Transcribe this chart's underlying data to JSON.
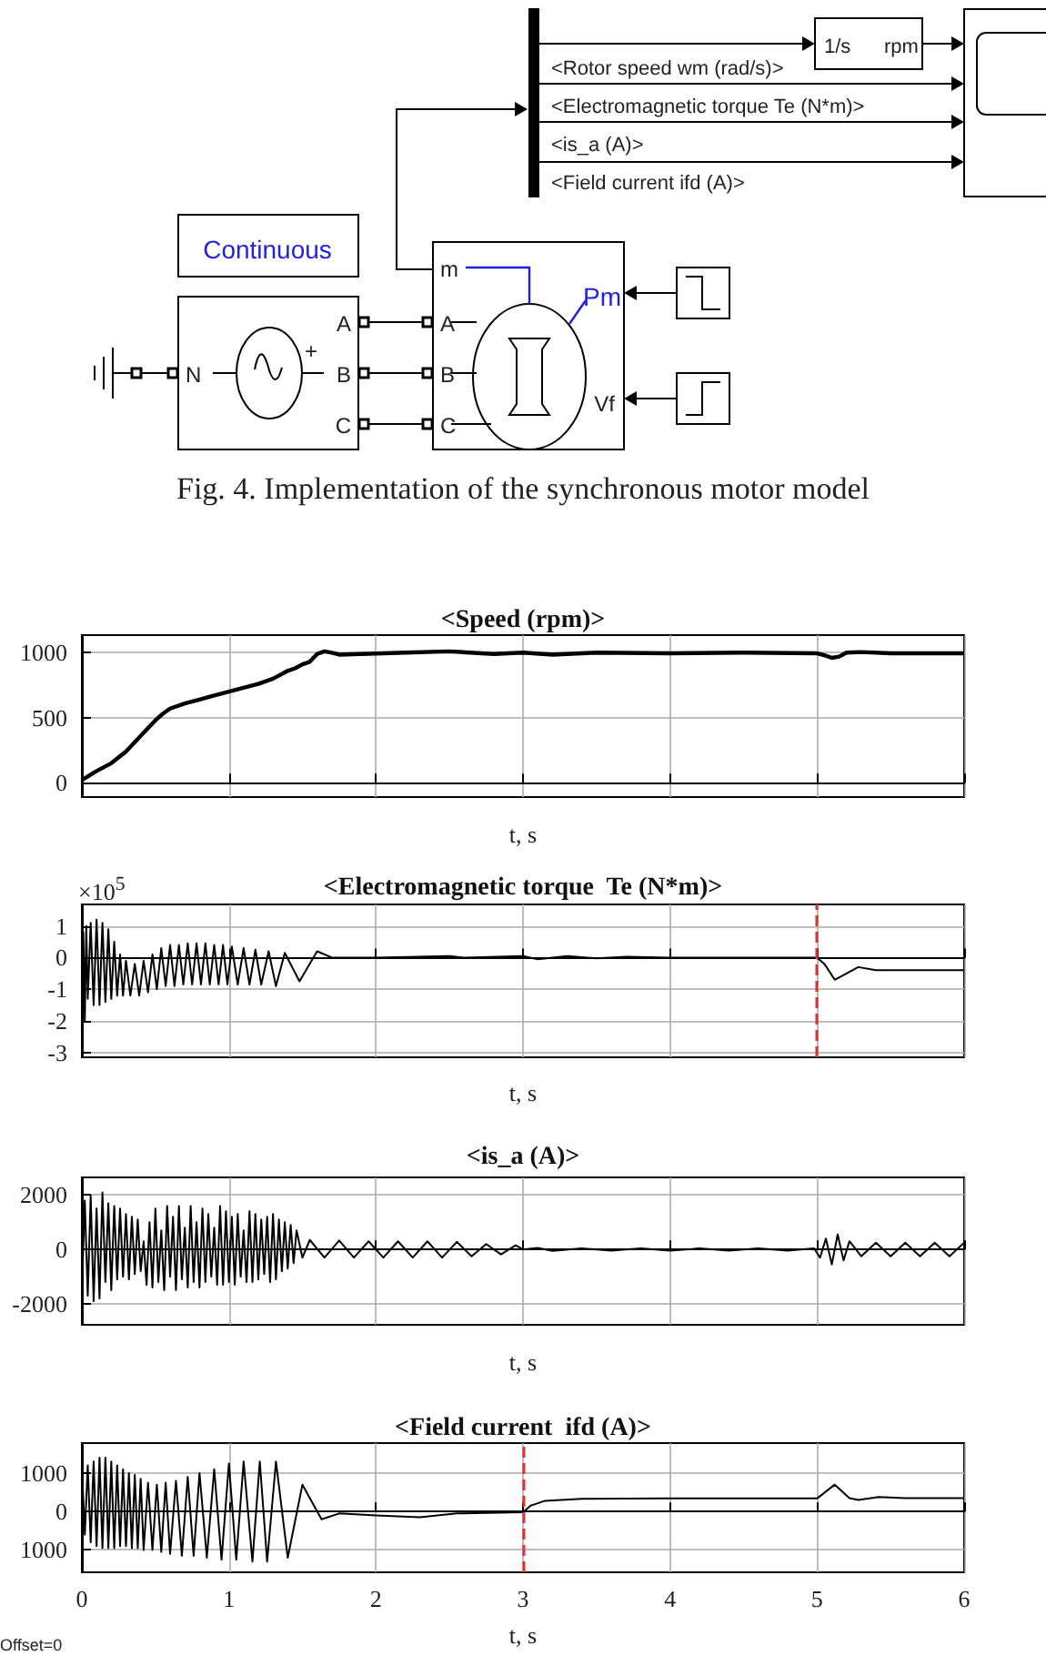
{
  "chart_data": [
    {
      "type": "other",
      "title": "Fig. 4. Implementation of the synchronous motor model",
      "annotations": [
        "1/s",
        "rpm",
        "<Rotor speed  wm (rad/s)>",
        "<Electromagnetic torque  Te (N*m)>",
        "<is_a (A)>",
        "<Field current  ifd (A)>",
        "Continuous",
        "N",
        "+",
        "A",
        "B",
        "C",
        "m",
        "A",
        "B",
        "C",
        "Pm",
        "Vf"
      ]
    },
    {
      "type": "line",
      "title": "<Speed (rpm)>",
      "xlabel": "t, s",
      "xlim": [
        0,
        6
      ],
      "xticks": [
        0,
        1,
        2,
        3,
        4,
        5,
        6
      ],
      "ylim": [
        -110,
        1135
      ],
      "yticks": [
        0,
        500,
        1000
      ],
      "grid": true,
      "tick_labels": "y",
      "series": [
        {
          "color": "#000000",
          "x": [
            0,
            0.1,
            0.2,
            0.3,
            0.4,
            0.5,
            0.55,
            0.6,
            0.7,
            0.8,
            0.9,
            1.0,
            1.1,
            1.2,
            1.3,
            1.35,
            1.4,
            1.45,
            1.5,
            1.55,
            1.6,
            1.65,
            1.7,
            1.75,
            1.9,
            2.2,
            2.5,
            2.8,
            3.0,
            3.2,
            3.5,
            4.0,
            4.5,
            5.0,
            5.05,
            5.1,
            5.15,
            5.2,
            5.3,
            5.5,
            6.0
          ],
          "values": [
            20,
            90,
            150,
            240,
            360,
            480,
            530,
            570,
            610,
            640,
            670,
            700,
            730,
            760,
            800,
            830,
            860,
            880,
            910,
            930,
            990,
            1010,
            1000,
            985,
            990,
            1000,
            1010,
            990,
            1000,
            985,
            1000,
            995,
            1000,
            995,
            980,
            960,
            970,
            1000,
            1005,
            995,
            995
          ]
        }
      ]
    },
    {
      "type": "line",
      "title": "<Electromagnetic torque  Te (N*m)>",
      "xlabel": "t, s",
      "annotations": [
        "×10$^{5}$"
      ],
      "xlim": [
        0,
        6
      ],
      "xticks": [
        0,
        1,
        2,
        3,
        4,
        5,
        6
      ],
      "ylim": [
        -3.15,
        1.68
      ],
      "yticks": [
        -3,
        -2,
        -1,
        0,
        1
      ],
      "grid": true,
      "tick_labels": "y",
      "ref_lines": [
        {
          "axis": "x",
          "value": 5,
          "color": "#e03030",
          "line_style": "dashed"
        }
      ],
      "series": [
        {
          "color": "#000000",
          "x": [
            0,
            0.01,
            0.02,
            0.03,
            0.04,
            0.06,
            0.08,
            0.1,
            0.12,
            0.14,
            0.16,
            0.18,
            0.2,
            0.22,
            0.24,
            0.26,
            0.28,
            0.3,
            0.33,
            0.36,
            0.39,
            0.42,
            0.45,
            0.48,
            0.51,
            0.54,
            0.57,
            0.6,
            0.63,
            0.66,
            0.69,
            0.72,
            0.75,
            0.78,
            0.81,
            0.84,
            0.87,
            0.9,
            0.93,
            0.96,
            0.99,
            1.02,
            1.06,
            1.1,
            1.14,
            1.18,
            1.22,
            1.27,
            1.32,
            1.38,
            1.48,
            1.6,
            1.7,
            2.0,
            2.5,
            2.6,
            3.0,
            3.1,
            3.3,
            3.5,
            3.7,
            4.0,
            5.0,
            5.05,
            5.12,
            5.2,
            5.28,
            5.4,
            6.0
          ],
          "values": [
            -2.8,
            0.8,
            -2.0,
            1.0,
            -1.3,
            1.1,
            -1.5,
            1.2,
            -1.5,
            1.1,
            -1.4,
            0.9,
            -1.3,
            0.5,
            -1.2,
            0.1,
            -1.2,
            -0.1,
            -1.2,
            -0.2,
            -1.2,
            -0.1,
            -1.1,
            0.1,
            -1.0,
            0.3,
            -0.9,
            0.4,
            -0.9,
            0.4,
            -0.85,
            0.45,
            -0.85,
            0.45,
            -0.85,
            0.45,
            -0.85,
            0.4,
            -0.85,
            0.4,
            -0.85,
            0.35,
            -0.85,
            0.3,
            -0.85,
            0.25,
            -0.85,
            0.2,
            -0.9,
            0.15,
            -0.75,
            0.2,
            0,
            0,
            0.05,
            0,
            0.05,
            -0.05,
            0.05,
            -0.02,
            0.03,
            0,
            0,
            -0.2,
            -0.7,
            -0.5,
            -0.3,
            -0.4,
            -0.4
          ]
        }
      ]
    },
    {
      "type": "line",
      "title": "<is_a (A)>",
      "xlabel": "t, s",
      "xlim": [
        0,
        6
      ],
      "xticks": [
        0,
        1,
        2,
        3,
        4,
        5,
        6
      ],
      "ylim": [
        -2770,
        2650
      ],
      "yticks": [
        -2000,
        0,
        2000
      ],
      "grid": true,
      "tick_labels": "y",
      "series": [
        {
          "color": "#000000",
          "x": [
            0,
            0.02,
            0.04,
            0.06,
            0.08,
            0.1,
            0.12,
            0.14,
            0.16,
            0.18,
            0.2,
            0.22,
            0.24,
            0.26,
            0.28,
            0.3,
            0.32,
            0.34,
            0.36,
            0.38,
            0.4,
            0.42,
            0.44,
            0.46,
            0.48,
            0.5,
            0.52,
            0.54,
            0.56,
            0.58,
            0.6,
            0.62,
            0.64,
            0.66,
            0.68,
            0.7,
            0.72,
            0.74,
            0.76,
            0.78,
            0.8,
            0.82,
            0.84,
            0.86,
            0.88,
            0.9,
            0.92,
            0.94,
            0.96,
            0.98,
            1.0,
            1.02,
            1.04,
            1.06,
            1.08,
            1.1,
            1.12,
            1.14,
            1.16,
            1.18,
            1.2,
            1.22,
            1.24,
            1.26,
            1.28,
            1.3,
            1.32,
            1.34,
            1.36,
            1.38,
            1.4,
            1.42,
            1.44,
            1.46,
            1.5,
            1.55,
            1.65,
            1.75,
            1.85,
            1.95,
            2.05,
            2.15,
            2.25,
            2.35,
            2.45,
            2.55,
            2.65,
            2.75,
            2.85,
            2.95,
            3.0,
            3.1,
            3.2,
            3.4,
            3.6,
            3.8,
            4.0,
            4.2,
            4.4,
            4.6,
            4.8,
            4.98,
            5.02,
            5.06,
            5.1,
            5.14,
            5.18,
            5.22,
            5.3,
            5.4,
            5.5,
            5.6,
            5.7,
            5.8,
            5.9,
            6.0
          ],
          "values": [
            -1500,
            1800,
            -1700,
            2000,
            -1900,
            1500,
            -1800,
            2100,
            -1200,
            1700,
            -1500,
            1600,
            -1100,
            1500,
            -1000,
            1300,
            -1100,
            1200,
            -900,
            1100,
            -800,
            300,
            -1300,
            1000,
            -1400,
            1500,
            -1200,
            700,
            -1500,
            1600,
            -1000,
            1200,
            -1500,
            1600,
            -1100,
            800,
            -1400,
            1600,
            -1200,
            1000,
            -1400,
            1500,
            -1200,
            1300,
            -1000,
            800,
            -1300,
            1600,
            -1300,
            1400,
            -1200,
            1200,
            -1300,
            1300,
            -1000,
            700,
            -1200,
            1400,
            -1200,
            1300,
            -1100,
            1100,
            -900,
            1200,
            -1200,
            1300,
            -1100,
            1100,
            -800,
            1000,
            -700,
            900,
            -500,
            700,
            -300,
            350,
            -300,
            330,
            -300,
            300,
            -300,
            300,
            -300,
            300,
            -300,
            280,
            -250,
            200,
            -180,
            150,
            0,
            60,
            -50,
            40,
            -40,
            40,
            -40,
            40,
            -40,
            40,
            -40,
            40,
            -300,
            400,
            -550,
            550,
            -400,
            300,
            -250,
            250,
            -250,
            250,
            -250,
            250,
            -250,
            250
          ]
        }
      ]
    },
    {
      "type": "line",
      "title": "<Field current  ifd (A)>",
      "xlabel": "t, s",
      "annotations": [
        "Offset=0"
      ],
      "xlim": [
        0,
        6
      ],
      "xticks": [
        0,
        1,
        2,
        3,
        4,
        5,
        6
      ],
      "ylim": [
        -1580,
        1780
      ],
      "yticks": [
        {
          "value": -1000,
          "label": "1000"
        },
        0,
        1000
      ],
      "grid": true,
      "ref_lines": [
        {
          "axis": "x",
          "value": 3,
          "color": "#e03030",
          "line_style": "dashed"
        }
      ],
      "series": [
        {
          "color": "#000000",
          "x": [
            0,
            0.02,
            0.04,
            0.06,
            0.08,
            0.1,
            0.12,
            0.14,
            0.16,
            0.18,
            0.2,
            0.22,
            0.24,
            0.26,
            0.28,
            0.3,
            0.32,
            0.34,
            0.36,
            0.38,
            0.4,
            0.42,
            0.45,
            0.48,
            0.51,
            0.54,
            0.57,
            0.6,
            0.64,
            0.68,
            0.72,
            0.76,
            0.8,
            0.85,
            0.9,
            0.95,
            1.0,
            1.05,
            1.1,
            1.16,
            1.21,
            1.26,
            1.32,
            1.4,
            1.5,
            1.63,
            1.75,
            2.0,
            2.3,
            2.55,
            3.0,
            3.05,
            3.15,
            3.4,
            4.0,
            5.0,
            5.12,
            5.22,
            5.28,
            5.42,
            5.6,
            6.0
          ],
          "values": [
            1200,
            -600,
            1200,
            -800,
            1300,
            -900,
            1400,
            -950,
            1400,
            -950,
            1300,
            -950,
            1200,
            -900,
            1100,
            -900,
            1000,
            -950,
            950,
            -950,
            850,
            -1000,
            750,
            -1000,
            700,
            -1050,
            750,
            -1100,
            800,
            -1150,
            900,
            -1150,
            1000,
            -1200,
            1100,
            -1250,
            1250,
            -1250,
            1300,
            -1300,
            1300,
            -1300,
            1300,
            -1200,
            700,
            -200,
            -50,
            -100,
            -150,
            -50,
            -20,
            150,
            280,
            330,
            340,
            340,
            700,
            350,
            300,
            380,
            350,
            350
          ]
        }
      ]
    }
  ]
}
